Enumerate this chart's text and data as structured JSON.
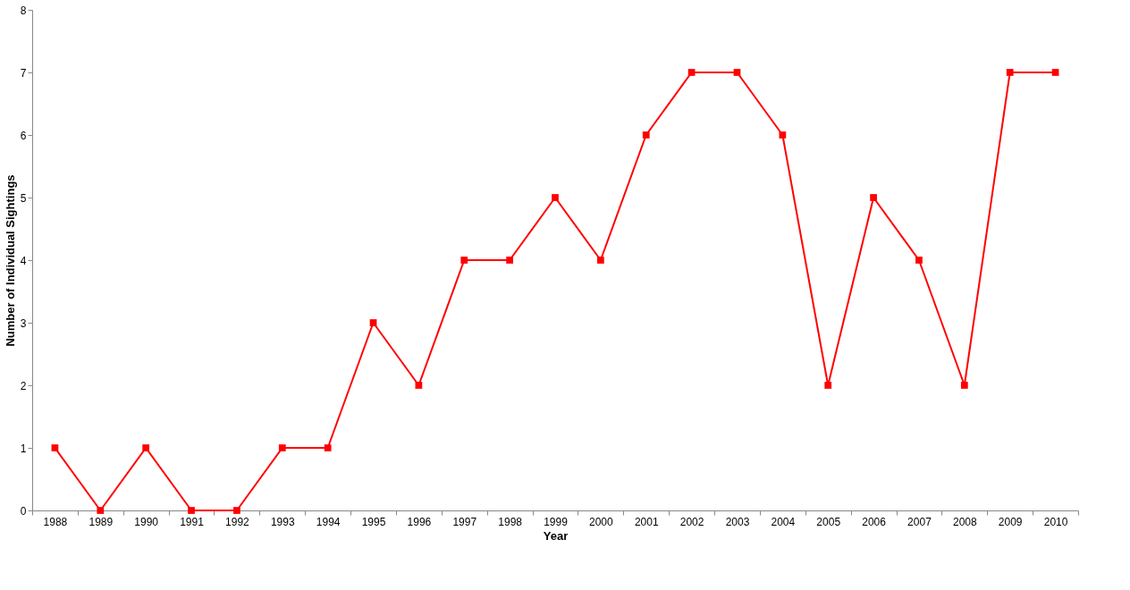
{
  "chart_data": {
    "type": "line",
    "xlabel": "Year",
    "ylabel": "Number of Individual Sightings",
    "categories": [
      "1988",
      "1989",
      "1990",
      "1991",
      "1992",
      "1993",
      "1994",
      "1995",
      "1996",
      "1997",
      "1998",
      "1999",
      "2000",
      "2001",
      "2002",
      "2003",
      "2004",
      "2005",
      "2006",
      "2007",
      "2008",
      "2009",
      "2010"
    ],
    "series": [
      {
        "color": "#ff0000",
        "values": [
          1,
          0,
          1,
          0,
          0,
          1,
          1,
          3,
          2,
          4,
          4,
          5,
          4,
          6,
          7,
          7,
          6,
          2,
          5,
          4,
          2,
          7,
          7
        ]
      }
    ],
    "ylim": [
      0,
      8
    ],
    "yticks": [
      0,
      1,
      2,
      3,
      4,
      5,
      6,
      7,
      8
    ],
    "grid": false,
    "marker": "square",
    "line_style": "solid"
  }
}
